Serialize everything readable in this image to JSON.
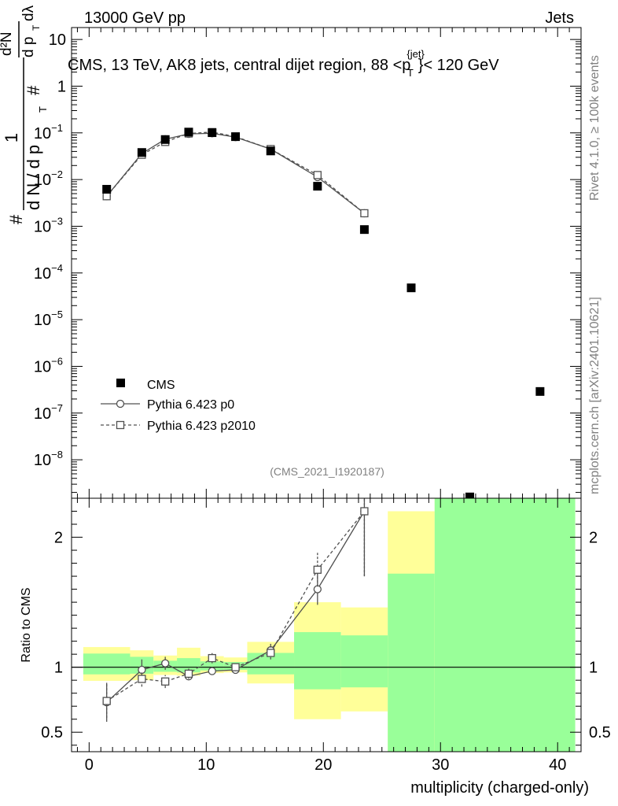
{
  "header": {
    "left": "13000 GeV pp",
    "right": "Jets"
  },
  "side_labels": {
    "rivet": "Rivet 4.1.0, ≥ 100k events",
    "mcplots": "mcplots.cern.ch [arXiv:2401.10621]"
  },
  "chart_data": {
    "type": "scatter",
    "title": "CMS, 13 TeV, AK8 jets, central dijet region, 88 <p",
    "title_sup": "{jet}",
    "title_sub": "T",
    "title_tail": "}< 120 GeV",
    "analysis_tag": "(CMS_2021_I1920187)",
    "xlabel": "multiplicity (charged-only)",
    "ylabel_ratio": "Ratio to CMS",
    "ylabel_main": {
      "hash": "#",
      "one": "1",
      "dN": "d N / d p",
      "T": "T",
      "d2N": "d²N",
      "dp": "d p",
      "dlambda": "dλ"
    },
    "xlim": [
      -1.5,
      42
    ],
    "xticks": [
      0,
      10,
      20,
      30,
      40
    ],
    "xtick_labels": [
      "0",
      "10",
      "20",
      "30",
      "40"
    ],
    "main": {
      "yscale": "log",
      "ylim": [
        1.5e-09,
        18
      ],
      "yticks": [
        {
          "v": 10,
          "base": "10",
          "exp": ""
        },
        {
          "v": 1,
          "base": "1",
          "exp": ""
        },
        {
          "v": 0.1,
          "base": "10",
          "exp": "−1"
        },
        {
          "v": 0.01,
          "base": "10",
          "exp": "−2"
        },
        {
          "v": 0.001,
          "base": "10",
          "exp": "−3"
        },
        {
          "v": 0.0001,
          "base": "10",
          "exp": "−4"
        },
        {
          "v": 1e-05,
          "base": "10",
          "exp": "−5"
        },
        {
          "v": 1e-06,
          "base": "10",
          "exp": "−6"
        },
        {
          "v": 1e-07,
          "base": "10",
          "exp": "−7"
        },
        {
          "v": 1e-08,
          "base": "10",
          "exp": "−8"
        }
      ]
    },
    "ratio": {
      "ylim": [
        0.35,
        2.3
      ],
      "yticks": [
        0.5,
        1,
        2
      ],
      "ytick_labels": [
        "0.5",
        "1",
        "2"
      ],
      "bands": [
        {
          "x0": -0.5,
          "x1": 3.5,
          "y_lo": 0.895,
          "y_hi": 1.155,
          "s_lo": 0.945,
          "s_hi": 1.105
        },
        {
          "x0": 3.5,
          "x1": 5.5,
          "y_lo": 0.9,
          "y_hi": 1.13,
          "s_lo": 0.95,
          "s_hi": 1.08
        },
        {
          "x0": 5.5,
          "x1": 7.5,
          "y_lo": 0.94,
          "y_hi": 1.09,
          "s_lo": 0.965,
          "s_hi": 1.05
        },
        {
          "x0": 7.5,
          "x1": 9.5,
          "y_lo": 0.935,
          "y_hi": 1.15,
          "s_lo": 0.96,
          "s_hi": 1.07
        },
        {
          "x0": 9.5,
          "x1": 11.5,
          "y_lo": 0.955,
          "y_hi": 1.085,
          "s_lo": 0.975,
          "s_hi": 1.045
        },
        {
          "x0": 11.5,
          "x1": 13.5,
          "y_lo": 0.96,
          "y_hi": 1.075,
          "s_lo": 0.98,
          "s_hi": 1.04
        },
        {
          "x0": 13.5,
          "x1": 17.5,
          "y_lo": 0.875,
          "y_hi": 1.195,
          "s_lo": 0.945,
          "s_hi": 1.11
        },
        {
          "x0": 17.5,
          "x1": 21.5,
          "y_lo": 0.6,
          "y_hi": 1.5,
          "s_lo": 0.83,
          "s_hi": 1.27
        },
        {
          "x0": 21.5,
          "x1": 25.5,
          "y_lo": 0.66,
          "y_hi": 1.46,
          "s_lo": 0.845,
          "s_hi": 1.245
        },
        {
          "x0": 25.5,
          "x1": 29.5,
          "y_lo": 0.35,
          "y_hi": 2.2,
          "s_lo": 0.35,
          "s_hi": 1.72
        },
        {
          "x0": 29.5,
          "x1": 41.5,
          "y_lo": 0.35,
          "y_hi": 2.3,
          "s_lo": 0.35,
          "s_hi": 2.3
        }
      ]
    },
    "series": [
      {
        "name": "CMS",
        "x": [
          1.5,
          4.5,
          6.5,
          8.5,
          10.5,
          12.5,
          15.5,
          19.5,
          23.5,
          27.5,
          32.5,
          38.5
        ],
        "y": [
          0.0062,
          0.038,
          0.072,
          0.104,
          0.101,
          0.083,
          0.041,
          0.0072,
          0.00085,
          4.8e-05,
          1.6e-09,
          2.9e-07
        ],
        "x_err": [
          1.5,
          1.5,
          0.5,
          1.5,
          0.5,
          1.5,
          2.0,
          2.0,
          2.0,
          2.0,
          2.5,
          3.5
        ]
      },
      {
        "name": "Pythia 6.423 p0",
        "x": [
          1.5,
          4.5,
          6.5,
          8.5,
          10.5,
          12.5,
          15.5,
          19.5,
          23.5
        ],
        "y": [
          0.0044,
          0.036,
          0.073,
          0.095,
          0.098,
          0.081,
          0.045,
          0.0113,
          0.0019
        ],
        "ratio": [
          0.73,
          0.98,
          1.03,
          0.93,
          0.97,
          0.98,
          1.13,
          1.6,
          2.2
        ],
        "ratio_err": [
          0.15,
          0.08,
          0.05,
          0.03,
          0.025,
          0.025,
          0.05,
          0.12,
          0.5
        ]
      },
      {
        "name": "Pythia 6.423 p2010",
        "x": [
          1.5,
          4.5,
          6.5,
          8.5,
          10.5,
          12.5,
          15.5,
          19.5,
          23.5
        ],
        "y": [
          0.0044,
          0.034,
          0.064,
          0.097,
          0.104,
          0.083,
          0.045,
          0.0125,
          0.0019
        ],
        "ratio": [
          0.74,
          0.91,
          0.89,
          0.95,
          1.07,
          1.0,
          1.11,
          1.75,
          2.2
        ],
        "ratio_err": [
          0.13,
          0.06,
          0.05,
          0.04,
          0.04,
          0.03,
          0.05,
          0.13,
          0.5
        ]
      }
    ],
    "legend": {
      "position": "lower-left",
      "entries": [
        "CMS",
        "Pythia 6.423 p0",
        "Pythia 6.423 p2010"
      ]
    },
    "colors": {
      "data": "#000000",
      "mc": "#505050",
      "band_yellow": "#ffff99",
      "band_green": "#99ff99"
    }
  }
}
